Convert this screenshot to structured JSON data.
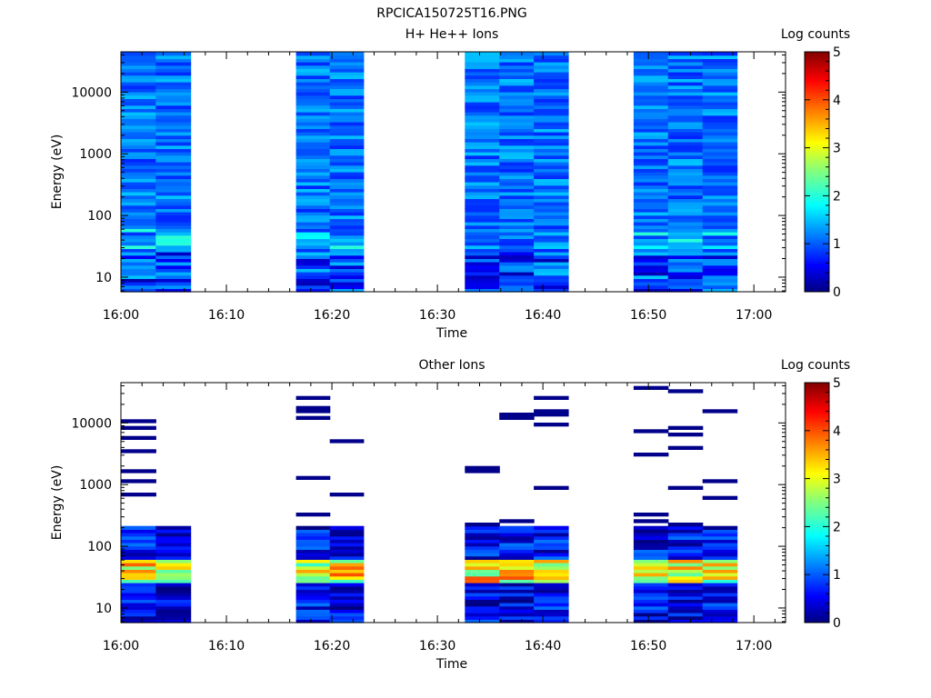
{
  "page_title": "RPCICA150725T16.PNG",
  "chart_data": [
    {
      "type": "heatmap",
      "title": "H+ He++ Ions",
      "xlabel": "Time",
      "ylabel": "Energy (eV)",
      "colorbar_label": "Log counts",
      "x_ticks": [
        "16:00",
        "16:10",
        "16:20",
        "16:30",
        "16:40",
        "16:50",
        "17:00"
      ],
      "x_range_minutes": [
        0,
        63
      ],
      "y_scale": "log",
      "y_range": [
        5.8,
        45000
      ],
      "y_ticks": [
        "10",
        "100",
        "1000",
        "10000"
      ],
      "colorbar_range": [
        0,
        5
      ],
      "colorbar_ticks": [
        "0",
        "1",
        "2",
        "3",
        "4",
        "5"
      ],
      "data_blocks_minutes": [
        [
          0,
          6.6
        ],
        [
          16.6,
          23
        ],
        [
          32.6,
          42.4
        ],
        [
          48.6,
          58.4
        ]
      ],
      "typical_log_counts": "0.8-1.6 across all energies; higher near 40 eV"
    },
    {
      "type": "heatmap",
      "title": "Other Ions",
      "xlabel": "Time",
      "ylabel": "Energy (eV)",
      "colorbar_label": "Log counts",
      "x_ticks": [
        "16:00",
        "16:10",
        "16:20",
        "16:30",
        "16:40",
        "16:50",
        "17:00"
      ],
      "x_range_minutes": [
        0,
        63
      ],
      "y_scale": "log",
      "y_range": [
        5.8,
        45000
      ],
      "y_ticks": [
        "10",
        "100",
        "1000",
        "10000"
      ],
      "colorbar_range": [
        0,
        5
      ],
      "colorbar_ticks": [
        "0",
        "1",
        "2",
        "3",
        "4",
        "5"
      ],
      "data_blocks_minutes": [
        [
          0,
          6.6
        ],
        [
          16.6,
          23
        ],
        [
          32.6,
          42.4
        ],
        [
          48.6,
          58.4
        ]
      ],
      "typical_log_counts": "0-1 above 200 eV (sparse); peaks of 3-4 between 25 and 60 eV"
    }
  ]
}
